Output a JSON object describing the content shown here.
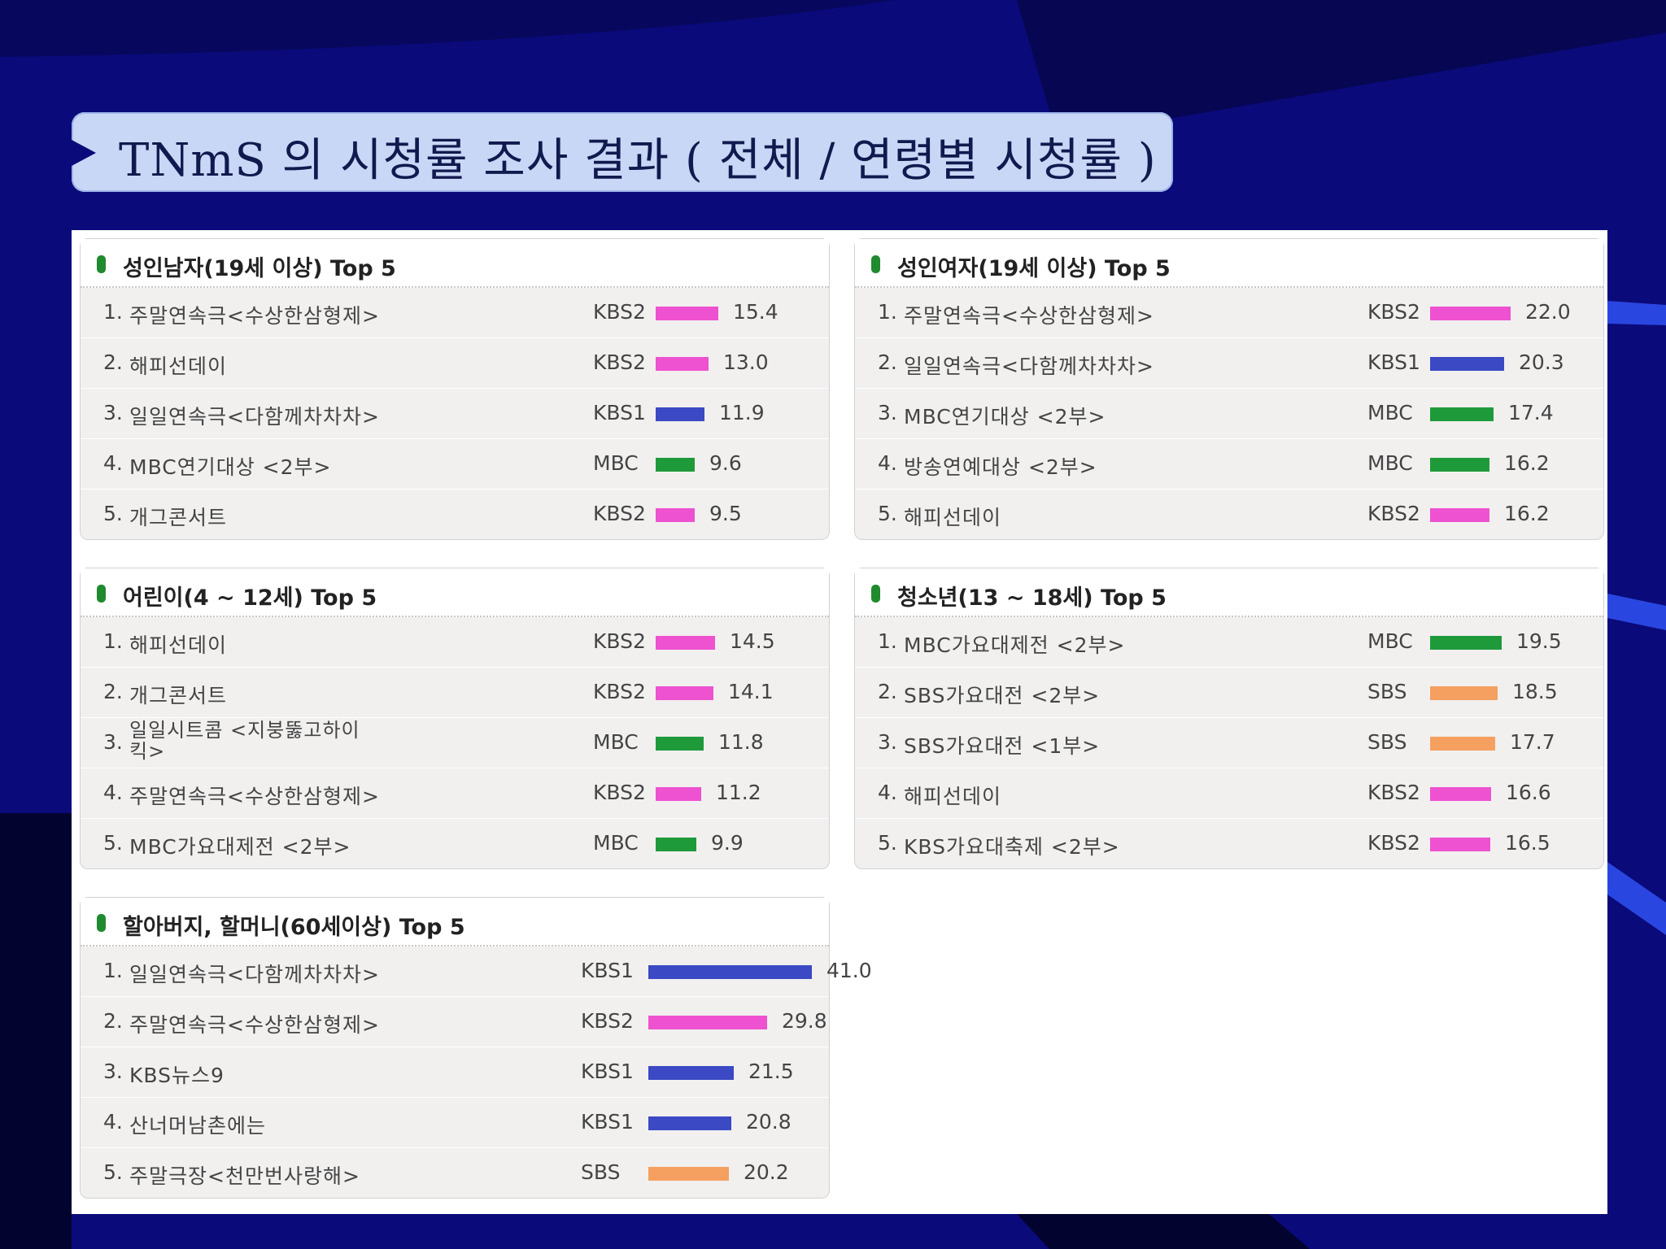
{
  "slide": {
    "title": "TNmS 의 시청률 조사 결과 ( 전체 / 연령별 시청률 )"
  },
  "colors": {
    "KBS1": "#3b49c4",
    "KBS2": "#ee52d0",
    "MBC": "#1f9a3a",
    "SBS": "#f5a060",
    "background": "#0a0a7a",
    "title_box": "#c9d7f6"
  },
  "chart_data": [
    {
      "type": "bar",
      "title": "성인남자(19세 이상) Top 5",
      "categories": [
        "주말연속극<수상한삼형제>",
        "해피선데이",
        "일일연속극<다함께차차차>",
        "MBC연기대상 <2부>",
        "개그콘서트"
      ],
      "ranks": [
        "1.",
        "2.",
        "3.",
        "4.",
        "5."
      ],
      "stations": [
        "KBS2",
        "KBS2",
        "KBS1",
        "MBC",
        "KBS2"
      ],
      "values": [
        15.4,
        13.0,
        11.9,
        9.6,
        9.5
      ],
      "labels": [
        "15.4",
        "13.0",
        "11.9",
        "9.6",
        "9.5"
      ]
    },
    {
      "type": "bar",
      "title": "성인여자(19세 이상) Top 5",
      "categories": [
        "주말연속극<수상한삼형제>",
        "일일연속극<다함께차차차>",
        "MBC연기대상 <2부>",
        "방송연예대상 <2부>",
        "해피선데이"
      ],
      "ranks": [
        "1.",
        "2.",
        "3.",
        "4.",
        "5."
      ],
      "stations": [
        "KBS2",
        "KBS1",
        "MBC",
        "MBC",
        "KBS2"
      ],
      "values": [
        22.0,
        20.3,
        17.4,
        16.2,
        16.2
      ],
      "labels": [
        "22.0",
        "20.3",
        "17.4",
        "16.2",
        "16.2"
      ]
    },
    {
      "type": "bar",
      "title": "어린이(4 ~ 12세) Top 5",
      "categories": [
        "해피선데이",
        "개그콘서트",
        "일일시트콤 <지붕뚫고하이킥>",
        "주말연속극<수상한삼형제>",
        "MBC가요대제전 <2부>"
      ],
      "ranks": [
        "1.",
        "2.",
        "3.",
        "4.",
        "5."
      ],
      "stations": [
        "KBS2",
        "KBS2",
        "MBC",
        "KBS2",
        "MBC"
      ],
      "values": [
        14.5,
        14.1,
        11.8,
        11.2,
        9.9
      ],
      "labels": [
        "14.5",
        "14.1",
        "11.8",
        "11.2",
        "9.9"
      ]
    },
    {
      "type": "bar",
      "title": "청소년(13 ~ 18세) Top 5",
      "categories": [
        "MBC가요대제전 <2부>",
        "SBS가요대전 <2부>",
        "SBS가요대전 <1부>",
        "해피선데이",
        "KBS가요대축제 <2부>"
      ],
      "ranks": [
        "1.",
        "2.",
        "3.",
        "4.",
        "5."
      ],
      "stations": [
        "MBC",
        "SBS",
        "SBS",
        "KBS2",
        "KBS2"
      ],
      "values": [
        19.5,
        18.5,
        17.7,
        16.6,
        16.5
      ],
      "labels": [
        "19.5",
        "18.5",
        "17.7",
        "16.6",
        "16.5"
      ]
    },
    {
      "type": "bar",
      "title": "할아버지, 할머니(60세이상) Top 5",
      "categories": [
        "일일연속극<다함께차차차>",
        "주말연속극<수상한삼형제>",
        "KBS뉴스9",
        "산너머남촌에는",
        "주말극장<천만번사랑해>"
      ],
      "ranks": [
        "1.",
        "2.",
        "3.",
        "4.",
        "5."
      ],
      "stations": [
        "KBS1",
        "KBS2",
        "KBS1",
        "KBS1",
        "SBS"
      ],
      "values": [
        41.0,
        29.8,
        21.5,
        20.8,
        20.2
      ],
      "labels": [
        "41.0",
        "29.8",
        "21.5",
        "20.8",
        "20.2"
      ]
    }
  ]
}
